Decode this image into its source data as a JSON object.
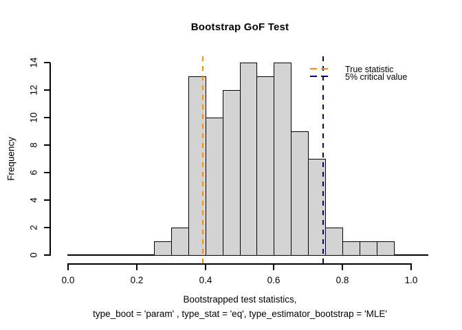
{
  "title": "Bootstrap GoF Test",
  "y_axis": {
    "label": "Frequency",
    "ticks": [
      "0",
      "2",
      "4",
      "6",
      "8",
      "10",
      "12",
      "14"
    ]
  },
  "x_axis": {
    "ticks": [
      "0.0",
      "0.2",
      "0.4",
      "0.6",
      "0.8",
      "1.0"
    ],
    "label_line1": "Bootstrapped test statistics,",
    "label_line2": "type_boot = 'param' , type_stat = 'eq', type_estimator_bootstrap = 'MLE'"
  },
  "legend": {
    "items": [
      {
        "label": "True statistic",
        "color": "#FF8C00"
      },
      {
        "label": "5% critical value",
        "color": "#00008B"
      }
    ]
  },
  "chart_data": {
    "type": "bar",
    "subtype": "histogram",
    "title": "Bootstrap GoF Test",
    "xlabel": "Bootstrapped test statistics, type_boot = 'param' , type_stat = 'eq', type_estimator_bootstrap = 'MLE'",
    "ylabel": "Frequency",
    "bin_edges": [
      0.25,
      0.3,
      0.35,
      0.4,
      0.45,
      0.5,
      0.55,
      0.6,
      0.65,
      0.7,
      0.75,
      0.8,
      0.85,
      0.9,
      0.95
    ],
    "counts": [
      1,
      2,
      13,
      10,
      12,
      14,
      13,
      14,
      9,
      7,
      2,
      1,
      1,
      1
    ],
    "total_count": 100,
    "xlim": [
      0,
      1
    ],
    "ylim": [
      0,
      14
    ],
    "x_tick_values": [
      0.0,
      0.2,
      0.4,
      0.6,
      0.8,
      1.0
    ],
    "y_tick_values": [
      0,
      2,
      4,
      6,
      8,
      10,
      12,
      14
    ],
    "bar_fill": "#D3D3D3",
    "bar_border": "#000000",
    "vlines": [
      {
        "label": "True statistic",
        "x": 0.393,
        "color": "#FF8C00",
        "style": "dashed"
      },
      {
        "label": "5% critical value",
        "x": 0.743,
        "color": "#00008B",
        "style": "dashed"
      }
    ],
    "legend_position": "top-right",
    "grid": false
  }
}
